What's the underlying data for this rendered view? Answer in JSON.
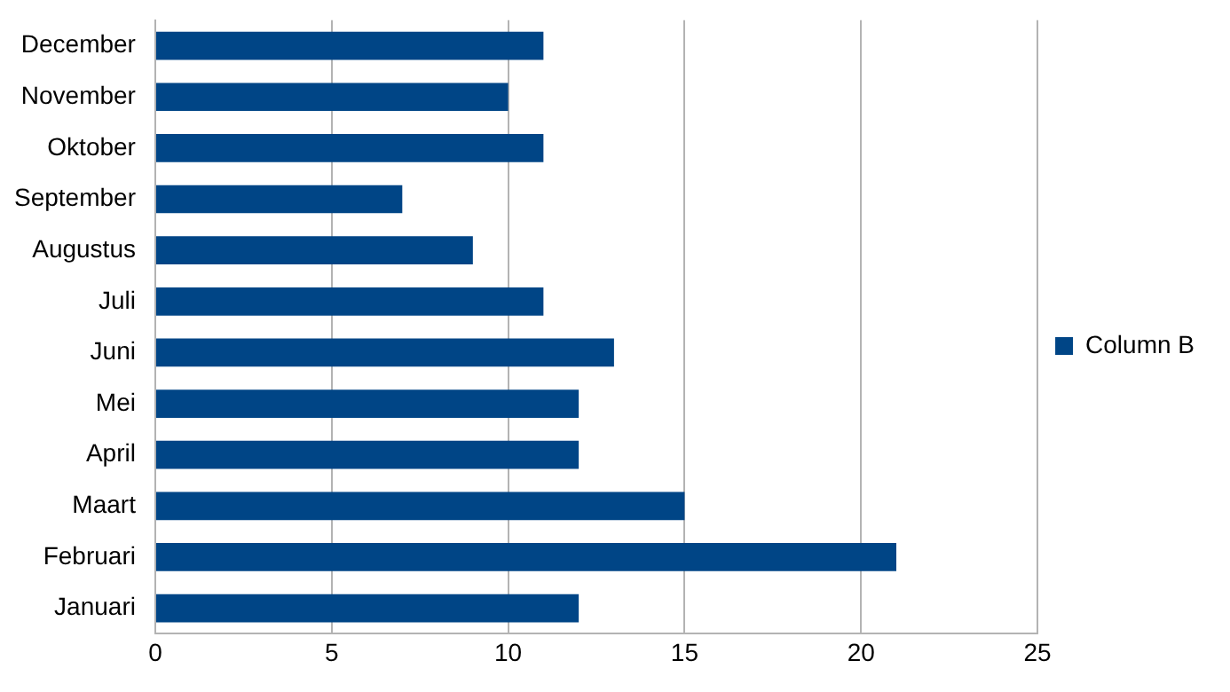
{
  "chart_data": {
    "type": "bar",
    "orientation": "horizontal",
    "categories": [
      "December",
      "November",
      "Oktober",
      "September",
      "Augustus",
      "Juli",
      "Juni",
      "Mei",
      "April",
      "Maart",
      "Februari",
      "Januari"
    ],
    "series": [
      {
        "name": "Column B",
        "color": "#004586",
        "values": [
          11,
          10,
          11,
          7,
          9,
          11,
          13,
          12,
          12,
          15,
          21,
          12
        ]
      }
    ],
    "xlim": [
      0,
      25
    ],
    "xticks": [
      0,
      5,
      10,
      15,
      20,
      25
    ],
    "grid": "x",
    "legend": "right"
  }
}
